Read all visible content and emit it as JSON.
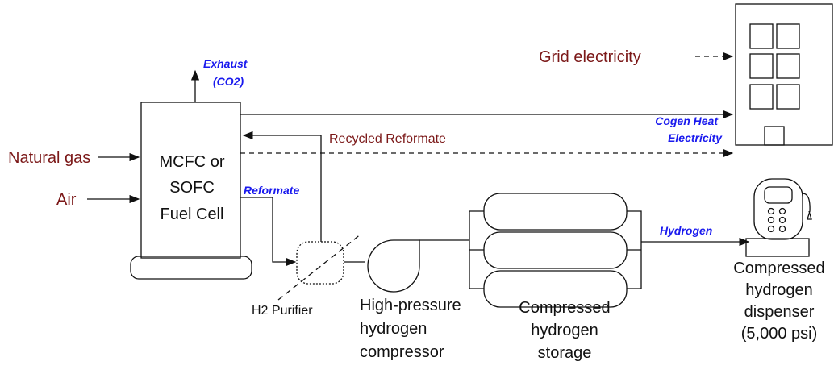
{
  "inputs": {
    "natural_gas": "Natural gas",
    "air": "Air",
    "grid": "Grid electricity"
  },
  "fuel_cell": {
    "lines": [
      "MCFC or",
      "SOFC",
      "Fuel Cell"
    ]
  },
  "flows": {
    "exhaust": [
      "Exhaust",
      "(CO2)"
    ],
    "reformate": "Reformate",
    "recycled": "Recycled Reformate",
    "cogen": "Cogen Heat",
    "electricity": "Electricity",
    "hydrogen": "Hydrogen"
  },
  "components": {
    "purifier": "H2 Purifier",
    "compressor": [
      "High-pressure",
      "hydrogen",
      "compressor"
    ],
    "storage": [
      "Compressed",
      "hydrogen",
      "storage"
    ],
    "dispenser": [
      "Compressed",
      "hydrogen",
      "dispenser",
      "(5,000 psi)"
    ]
  }
}
